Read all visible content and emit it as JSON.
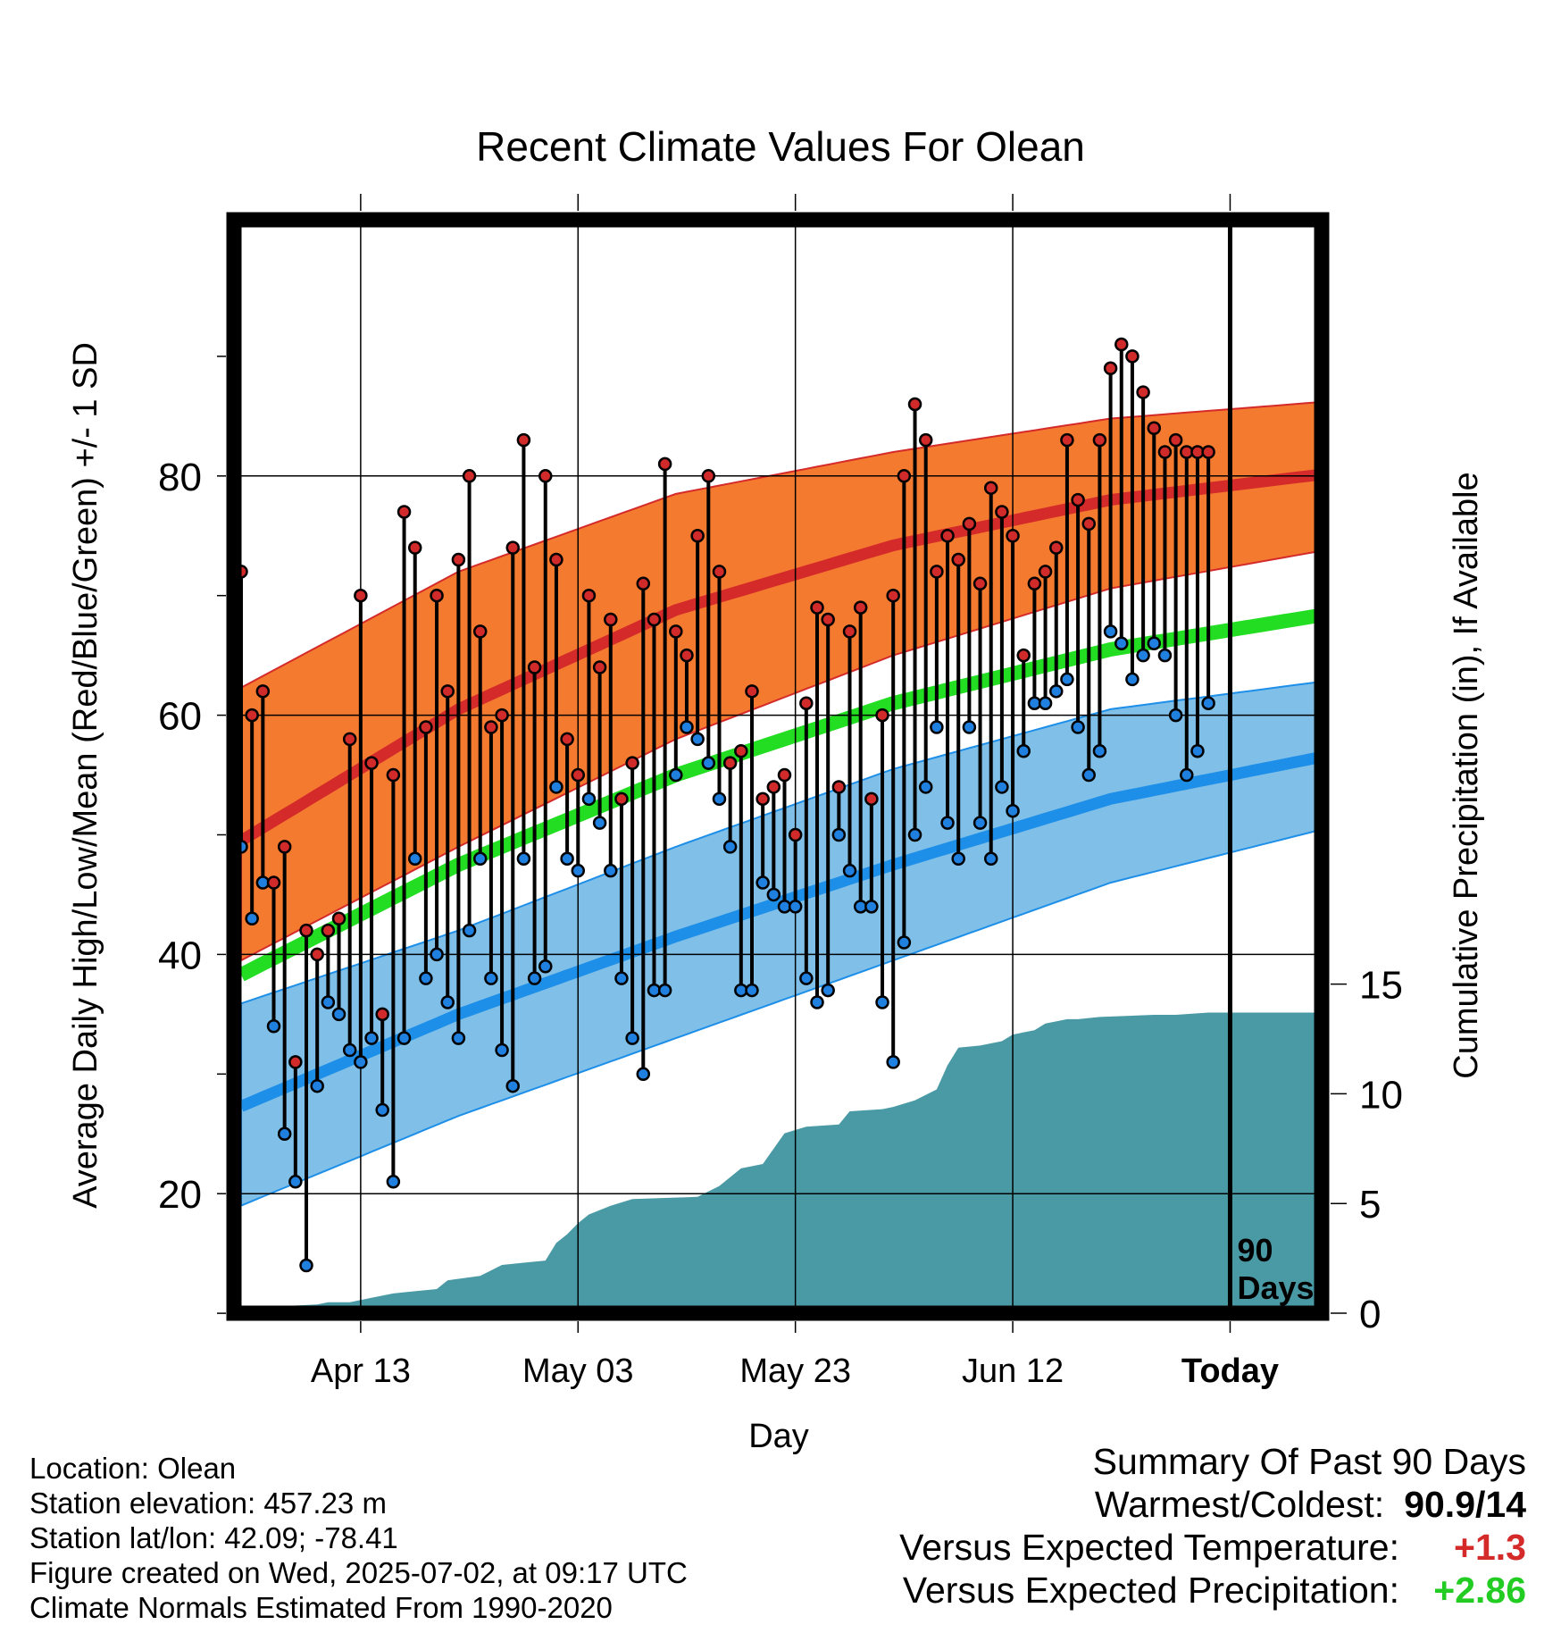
{
  "chart_data": {
    "type": "line",
    "title": "Recent Climate Values For Olean",
    "xlabel": "Day",
    "ylabel_left": "Average Daily High/Low/Mean (Red/Blue/Green) +/- 1 SD",
    "ylabel_right": "Cumulative Precipitation (in), If Available",
    "x_tick_labels": [
      "Apr 13",
      "May 03",
      "May 23",
      "Jun 12",
      "Today"
    ],
    "x_tick_days": [
      11,
      31,
      51,
      71,
      91
    ],
    "y_left_ticks": [
      20,
      40,
      60,
      80
    ],
    "y_left_range": [
      5,
      95
    ],
    "y_right_ticks": [
      0,
      5,
      10,
      15
    ],
    "y_right_range": [
      0,
      50
    ],
    "today_marker_label": "90 Days",
    "days_shown": 101,
    "colors": {
      "high_band": "#f47a30",
      "high_mean": "#d42a2a",
      "low_band": "#80c0e8",
      "low_mean": "#1e8fe8",
      "mean_line": "#22dd22",
      "precip": "#4a9aa6",
      "high_point": "#d02a2a",
      "low_point": "#2080e0"
    },
    "normal_high": {
      "day": [
        0,
        20,
        40,
        60,
        80,
        101
      ],
      "mean": [
        49.5,
        60.5,
        68.8,
        74.2,
        78.0,
        80.3
      ],
      "upper": [
        62.3,
        72.0,
        78.5,
        82.0,
        84.8,
        86.3
      ],
      "lower": [
        39.5,
        49.0,
        58.0,
        65.0,
        70.6,
        74.0
      ]
    },
    "normal_low": {
      "day": [
        0,
        20,
        40,
        60,
        80,
        101
      ],
      "mean": [
        27.3,
        35.0,
        41.5,
        47.5,
        53.0,
        56.8
      ],
      "upper": [
        35.9,
        42.0,
        49.0,
        55.5,
        60.5,
        63.0
      ],
      "lower": [
        19.0,
        26.5,
        33.0,
        39.5,
        46.0,
        50.8
      ]
    },
    "normal_mean": {
      "day": [
        0,
        20,
        40,
        60,
        80,
        101
      ],
      "values": [
        38.3,
        47.5,
        55.0,
        61.0,
        65.5,
        68.6
      ]
    },
    "daily_high": [
      72,
      60,
      62,
      46,
      49,
      31,
      42,
      40,
      42,
      43,
      58,
      70,
      56,
      35,
      55,
      77,
      74,
      59,
      70,
      62,
      73,
      80,
      67,
      59,
      60,
      74,
      83,
      64,
      80,
      73,
      58,
      55,
      70,
      64,
      68,
      53,
      56,
      71,
      68,
      81,
      67,
      65,
      75,
      80,
      72,
      56,
      57,
      62,
      53,
      54,
      55,
      50,
      61,
      69,
      68,
      54,
      67,
      69,
      53,
      60,
      70,
      80,
      86,
      83,
      72,
      75,
      73,
      76,
      71,
      79,
      77,
      75,
      65,
      71,
      72,
      74,
      83,
      78,
      76,
      83,
      89,
      91,
      90,
      87,
      84,
      82,
      83,
      82,
      82,
      82
    ],
    "daily_low": [
      49,
      43,
      46,
      34,
      25,
      21,
      14,
      29,
      36,
      35,
      32,
      31,
      33,
      27,
      21,
      33,
      48,
      38,
      40,
      36,
      33,
      42,
      48,
      38,
      32,
      29,
      48,
      38,
      39,
      54,
      48,
      47,
      53,
      51,
      47,
      38,
      33,
      30,
      37,
      37,
      55,
      59,
      58,
      56,
      53,
      49,
      37,
      37,
      46,
      45,
      44,
      44,
      38,
      36,
      37,
      50,
      47,
      44,
      44,
      36,
      31,
      41,
      50,
      54,
      59,
      51,
      48,
      59,
      51,
      48,
      54,
      52,
      57,
      61,
      61,
      62,
      63,
      59,
      55,
      57,
      67,
      66,
      63,
      65,
      66,
      65,
      60,
      55,
      57,
      61
    ],
    "cumulative_precip": {
      "day": [
        0,
        2,
        3,
        7,
        8,
        10,
        12,
        14,
        16,
        18,
        19,
        22,
        24,
        26,
        28,
        29,
        30,
        31,
        32,
        33,
        34,
        36,
        42,
        44,
        46,
        48,
        50,
        52,
        55,
        56,
        59,
        60,
        62,
        64,
        65,
        66,
        68,
        70,
        71,
        73,
        74,
        76,
        77,
        79,
        84,
        86,
        89,
        91,
        101
      ],
      "values": [
        0.0,
        0.2,
        0.3,
        0.4,
        0.5,
        0.5,
        0.7,
        0.9,
        1.0,
        1.1,
        1.5,
        1.7,
        2.2,
        2.3,
        2.4,
        3.2,
        3.6,
        4.1,
        4.5,
        4.7,
        4.9,
        5.2,
        5.3,
        5.8,
        6.6,
        6.8,
        8.2,
        8.5,
        8.6,
        9.2,
        9.3,
        9.4,
        9.7,
        10.2,
        11.3,
        12.1,
        12.2,
        12.4,
        12.7,
        12.9,
        13.2,
        13.4,
        13.4,
        13.5,
        13.6,
        13.6,
        13.7,
        13.7,
        13.7
      ]
    }
  },
  "footer": {
    "location": "Location: Olean",
    "elevation": "Station elevation: 457.23 m",
    "latlon": "Station lat/lon: 42.09; -78.41",
    "created": "Figure created on Wed, 2025-07-02, at 09:17 UTC",
    "normals": "Climate Normals Estimated From 1990-2020"
  },
  "summary": {
    "title": "Summary Of Past 90 Days",
    "warmest_label": "Warmest/Coldest:",
    "warmest_value": "90.9/14",
    "temp_label": "Versus Expected Temperature:",
    "temp_value": "+1.3",
    "temp_color": "#d42a2a",
    "precip_label": "Versus Expected Precipitation:",
    "precip_value": "+2.86",
    "precip_color": "#22cc22"
  }
}
